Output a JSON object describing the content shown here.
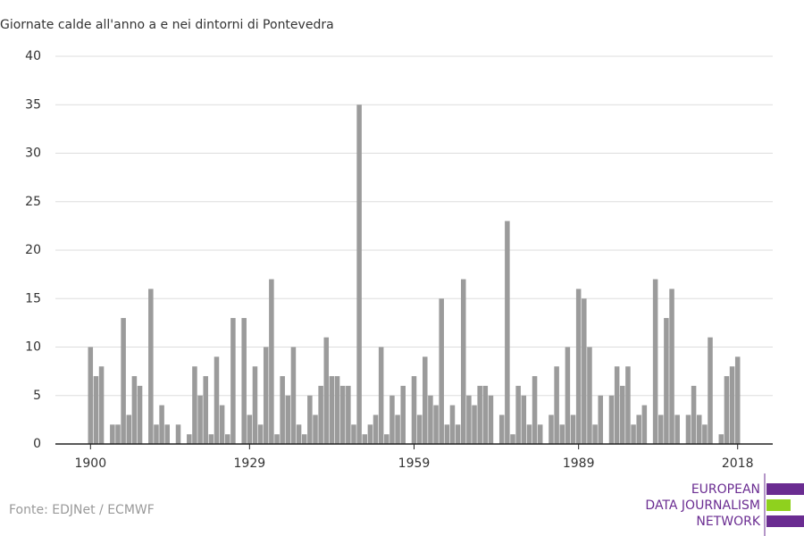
{
  "chart_data": {
    "type": "bar",
    "title": "Giornate calde all'anno a e nei dintorni di Pontevedra",
    "x": [
      1900,
      1901,
      1902,
      1903,
      1904,
      1905,
      1906,
      1907,
      1908,
      1909,
      1910,
      1911,
      1912,
      1913,
      1914,
      1915,
      1916,
      1917,
      1918,
      1919,
      1920,
      1921,
      1922,
      1923,
      1924,
      1925,
      1926,
      1927,
      1928,
      1929,
      1930,
      1931,
      1932,
      1933,
      1934,
      1935,
      1936,
      1937,
      1938,
      1939,
      1940,
      1941,
      1942,
      1943,
      1944,
      1945,
      1946,
      1947,
      1948,
      1949,
      1950,
      1951,
      1952,
      1953,
      1954,
      1955,
      1956,
      1957,
      1958,
      1959,
      1960,
      1961,
      1962,
      1963,
      1964,
      1965,
      1966,
      1967,
      1968,
      1969,
      1970,
      1971,
      1972,
      1973,
      1974,
      1975,
      1976,
      1977,
      1978,
      1979,
      1980,
      1981,
      1982,
      1983,
      1984,
      1985,
      1986,
      1987,
      1988,
      1989,
      1990,
      1991,
      1992,
      1993,
      1994,
      1995,
      1996,
      1997,
      1998,
      1999,
      2000,
      2001,
      2002,
      2003,
      2004,
      2005,
      2006,
      2007,
      2008,
      2009,
      2010,
      2011,
      2012,
      2013,
      2014,
      2015,
      2016,
      2017,
      2018
    ],
    "values": [
      10,
      7,
      8,
      0,
      2,
      2,
      13,
      3,
      7,
      6,
      0,
      16,
      2,
      4,
      2,
      0,
      2,
      0,
      1,
      8,
      5,
      7,
      1,
      9,
      4,
      1,
      13,
      0,
      13,
      3,
      8,
      2,
      10,
      17,
      1,
      7,
      5,
      10,
      2,
      1,
      5,
      3,
      6,
      11,
      7,
      7,
      6,
      6,
      2,
      35,
      1,
      2,
      3,
      10,
      1,
      5,
      3,
      6,
      0,
      7,
      3,
      9,
      5,
      4,
      15,
      2,
      4,
      2,
      17,
      5,
      4,
      6,
      6,
      5,
      0,
      3,
      23,
      1,
      6,
      5,
      2,
      7,
      2,
      0,
      3,
      8,
      2,
      10,
      3,
      16,
      15,
      10,
      2,
      5,
      0,
      5,
      8,
      6,
      8,
      2,
      3,
      4,
      0,
      17,
      3,
      13,
      16,
      3,
      0,
      3,
      6,
      3,
      2,
      11,
      0,
      1,
      7,
      8,
      9
    ],
    "color": "#9b9b9b",
    "xlim": [
      1893.6,
      2024.4
    ],
    "xticks": [
      1900,
      1929,
      1959,
      1989,
      2018
    ],
    "ylim": [
      0,
      40
    ],
    "yticks": [
      0,
      5,
      10,
      15,
      20,
      25,
      30,
      35,
      40
    ],
    "grid": true
  },
  "source": "Fonte: EDJNet / ECMWF",
  "logo": [
    "EUROPEAN",
    "DATA JOURNALISM",
    "NETWORK"
  ]
}
